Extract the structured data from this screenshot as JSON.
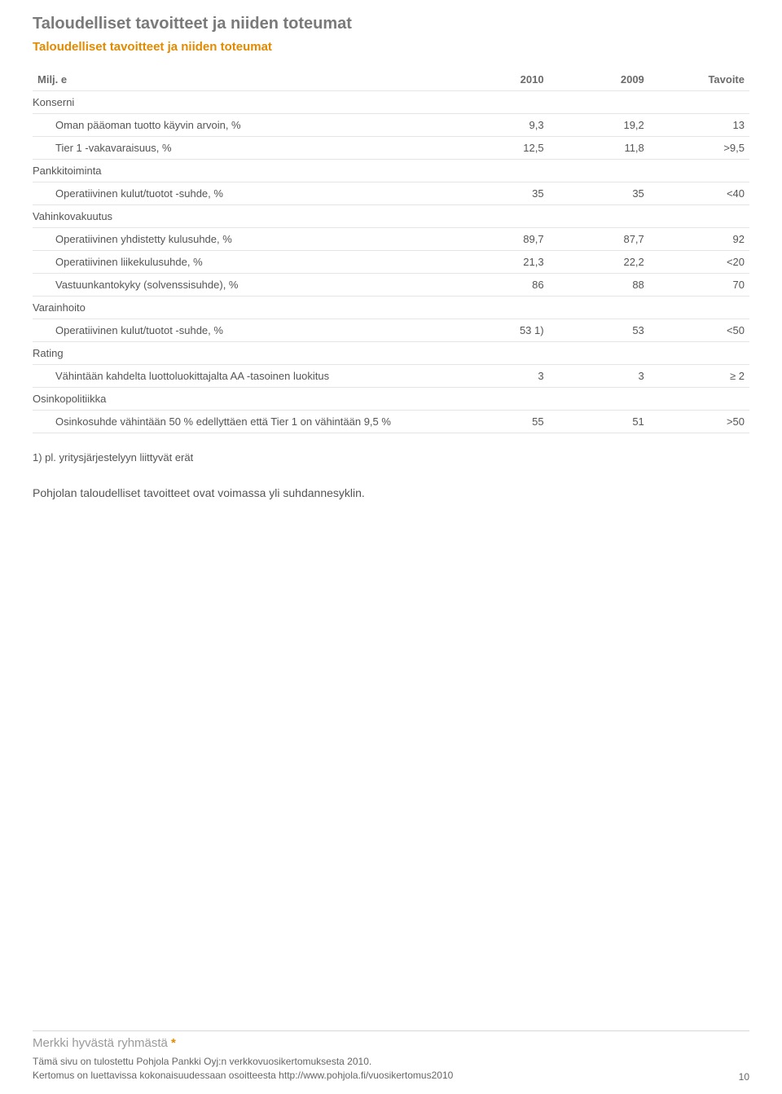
{
  "heading": {
    "title": "Taloudelliset tavoitteet ja niiden toteumat",
    "subtitle": "Taloudelliset tavoitteet ja niiden toteumat"
  },
  "table": {
    "columns": {
      "c0": "Milj. e",
      "c1": "2010",
      "c2": "2009",
      "c3": "Tavoite"
    },
    "rows": [
      {
        "type": "section",
        "label": "Konserni"
      },
      {
        "type": "entry",
        "label": "Oman pääoman tuotto käyvin arvoin, %",
        "v1": "9,3",
        "v2": "19,2",
        "v3": "13"
      },
      {
        "type": "entry",
        "label": "Tier 1 -vakavaraisuus, %",
        "v1": "12,5",
        "v2": "11,8",
        "v3": ">9,5"
      },
      {
        "type": "section",
        "label": "Pankkitoiminta"
      },
      {
        "type": "entry",
        "label": "Operatiivinen kulut/tuotot -suhde, %",
        "v1": "35",
        "v2": "35",
        "v3": "<40"
      },
      {
        "type": "section",
        "label": "Vahinkovakuutus"
      },
      {
        "type": "entry",
        "label": "Operatiivinen yhdistetty kulusuhde, %",
        "v1": "89,7",
        "v2": "87,7",
        "v3": "92"
      },
      {
        "type": "entry",
        "label": "Operatiivinen liikekulusuhde, %",
        "v1": "21,3",
        "v2": "22,2",
        "v3": "<20"
      },
      {
        "type": "entry",
        "label": "Vastuunkantokyky (solvenssisuhde), %",
        "v1": "86",
        "v2": "88",
        "v3": "70"
      },
      {
        "type": "section",
        "label": "Varainhoito"
      },
      {
        "type": "entry",
        "label": "Operatiivinen kulut/tuotot -suhde, %",
        "v1": "53 1)",
        "v2": "53",
        "v3": "<50"
      },
      {
        "type": "section",
        "label": "Rating"
      },
      {
        "type": "entry",
        "label": "Vähintään kahdelta luottoluokittajalta AA -tasoinen luokitus",
        "v1": "3",
        "v2": "3",
        "v3": "≥ 2"
      },
      {
        "type": "section",
        "label": "Osinkopolitiikka"
      },
      {
        "type": "entry",
        "label": "Osinkosuhde vähintään 50 % edellyttäen että Tier 1 on vähintään 9,5 %",
        "v1": "55",
        "v2": "51",
        "v3": ">50"
      }
    ]
  },
  "footnote": "1) pl. yritysjärjestelyyn liittyvät erät",
  "bodytext": "Pohjolan taloudelliset tavoitteet ovat voimassa yli suhdannesyklin.",
  "footer": {
    "brand": "Merkki hyvästä ryhmästä",
    "star": " *",
    "line1": "Tämä sivu on tulostettu Pohjola Pankki Oyj:n verkkovuosikertomuksesta 2010.",
    "line2": "Kertomus on luettavissa kokonaisuudessaan osoitteesta http://www.pohjola.fi/vuosikertomus2010",
    "page": "10"
  }
}
